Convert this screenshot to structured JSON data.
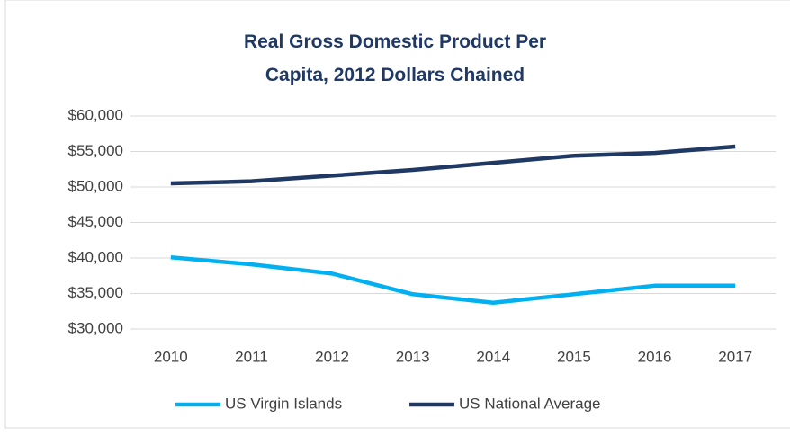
{
  "chart_data": {
    "type": "line",
    "title": "Real Gross Domestic Product Per Capita, 2012 Dollars Chained",
    "categories": [
      "2010",
      "2011",
      "2012",
      "2013",
      "2014",
      "2015",
      "2016",
      "2017"
    ],
    "series": [
      {
        "name": "US Virgin Islands",
        "color": "#00b0f0",
        "values": [
          40100,
          39100,
          37800,
          34900,
          33700,
          34900,
          36100,
          36100
        ]
      },
      {
        "name": "US National Average",
        "color": "#1f3864",
        "values": [
          50500,
          50800,
          51600,
          52400,
          53400,
          54400,
          54800,
          55700
        ]
      }
    ],
    "ylim": [
      30000,
      60000
    ],
    "yticks": [
      {
        "value": 30000,
        "label": "$30,000"
      },
      {
        "value": 35000,
        "label": "$35,000"
      },
      {
        "value": 40000,
        "label": "$40,000"
      },
      {
        "value": 45000,
        "label": "$45,000"
      },
      {
        "value": 50000,
        "label": "$50,000"
      },
      {
        "value": 55000,
        "label": "$55,000"
      },
      {
        "value": 60000,
        "label": "$60,000"
      }
    ],
    "grid": true,
    "legend": "bottom"
  }
}
